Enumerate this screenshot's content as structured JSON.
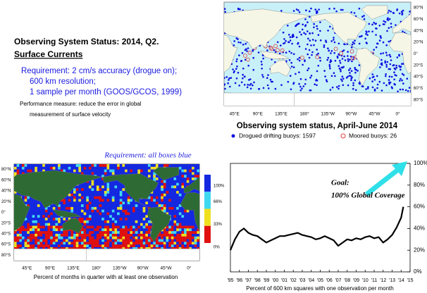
{
  "slide": {
    "title": "Observing System Status:  2014, Q2.",
    "subtitle": "Surface Currents",
    "requirements": [
      "Requirement: 2 cm/s accuracy (drogue on);",
      "600 km resolution;",
      "1 sample per month (GOOS/GCOS, 1999)"
    ],
    "performance": [
      "Performance measure: reduce the error in global",
      "measurement of surface velocity"
    ]
  },
  "buoy_map": {
    "title": "Observing system status, April-June 2014",
    "lat_labels": [
      "80°N",
      "60°N",
      "40°N",
      "20°N",
      "0°",
      "20°S",
      "40°S",
      "60°S",
      "80°S"
    ],
    "lon_labels": [
      "45°E",
      "90°E",
      "135°E",
      "180°",
      "135°W",
      "90°W",
      "45°W",
      "0°"
    ],
    "legend": [
      "Drogued drifting buoys: 1597",
      "Moored buoys: 26"
    ]
  },
  "coverage_map": {
    "annotation": "Requirement: all boxes blue",
    "lat_labels": [
      "80°N",
      "60°N",
      "40°N",
      "20°N",
      "0°",
      "20°S",
      "40°S",
      "60°S",
      "80°S"
    ],
    "lon_labels": [
      "45°E",
      "90°E",
      "135°E",
      "180°",
      "135°W",
      "90°W",
      "45°W",
      "0°"
    ],
    "colorbar": {
      "labels": [
        "100%",
        "66%",
        "33%",
        "0%"
      ],
      "colors": [
        "#1428e0",
        "#40d8f0",
        "#f0e020",
        "#e01010"
      ]
    },
    "caption": "Percent of months in quarter with at least one observation"
  },
  "chart_data": {
    "type": "line",
    "color": "#000000",
    "x": [
      1995,
      1995.5,
      1996,
      1996.5,
      1997,
      1997.5,
      1998,
      1998.5,
      1999,
      1999.5,
      2000,
      2000.5,
      2001,
      2001.5,
      2002,
      2002.5,
      2003,
      2003.5,
      2004,
      2004.5,
      2005,
      2005.5,
      2006,
      2006.5,
      2007,
      2007.5,
      2008,
      2008.5,
      2009,
      2009.5,
      2010,
      2010.5,
      2011,
      2011.5,
      2012,
      2012.5,
      2013,
      2013.5,
      2014,
      2014.25
    ],
    "values": [
      20,
      30,
      37,
      40,
      36,
      34,
      33,
      30,
      27,
      29,
      31,
      33,
      33,
      34,
      35,
      36,
      34,
      33,
      32,
      30,
      31,
      33,
      31,
      29,
      24,
      27,
      30,
      29,
      31,
      30,
      32,
      33,
      31,
      32,
      27,
      30,
      34,
      41,
      50,
      60
    ],
    "xlim": [
      1995,
      2015
    ],
    "xticks": [
      {
        "value": 1995,
        "label": "'95"
      },
      {
        "value": 1996,
        "label": "'96"
      },
      {
        "value": 1997,
        "label": "'97"
      },
      {
        "value": 1998,
        "label": "'98"
      },
      {
        "value": 1999,
        "label": "'99"
      },
      {
        "value": 2000,
        "label": "'00"
      },
      {
        "value": 2001,
        "label": "'01"
      },
      {
        "value": 2002,
        "label": "'02"
      },
      {
        "value": 2003,
        "label": "'03"
      },
      {
        "value": 2004,
        "label": "'04"
      },
      {
        "value": 2005,
        "label": "'05"
      },
      {
        "value": 2006,
        "label": "'06"
      },
      {
        "value": 2007,
        "label": "'07"
      },
      {
        "value": 2008,
        "label": "'08"
      },
      {
        "value": 2009,
        "label": "'09"
      },
      {
        "value": 2010,
        "label": "'10"
      },
      {
        "value": 2011,
        "label": "'11"
      },
      {
        "value": 2012,
        "label": "'12"
      },
      {
        "value": 2013,
        "label": "'13"
      },
      {
        "value": 2014,
        "label": "'14"
      },
      {
        "value": 2015,
        "label": "'15"
      }
    ],
    "ylim": [
      0,
      100
    ],
    "yticks": [
      {
        "value": 0,
        "label": "0%"
      },
      {
        "value": 20,
        "label": "20%"
      },
      {
        "value": 40,
        "label": "40%"
      },
      {
        "value": 60,
        "label": "60%"
      },
      {
        "value": 80,
        "label": "80%"
      },
      {
        "value": 100,
        "label": "100%"
      }
    ],
    "x_label": "Percent of 600 km squares with one observation per month",
    "annotations": [
      "Goal:",
      "100% Global Coverage"
    ]
  }
}
